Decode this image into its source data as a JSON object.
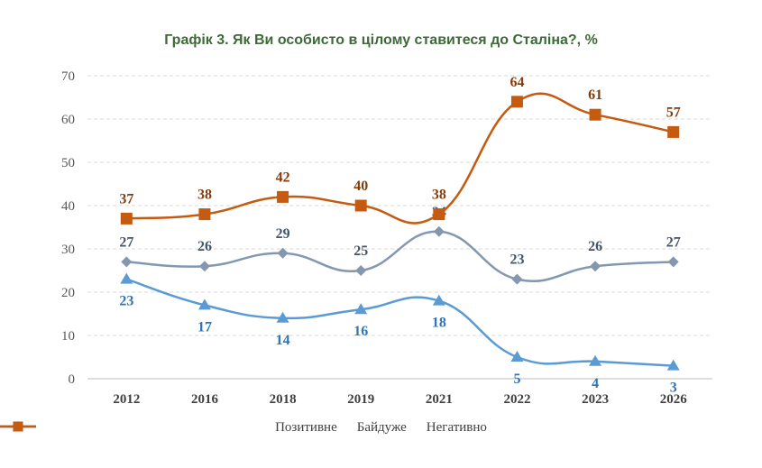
{
  "title": "Графік 3. Як Ви особисто в цілому ставитеся до Сталіна?, %",
  "chart_data": {
    "type": "line",
    "title": "Графік 3. Як Ви особисто в цілому ставитеся до Сталіна?, %",
    "categories": [
      "2012",
      "2016",
      "2018",
      "2019",
      "2021",
      "2022",
      "2023",
      "2026"
    ],
    "ylim": [
      0,
      70
    ],
    "yticks": [
      0,
      10,
      20,
      30,
      40,
      50,
      60,
      70
    ],
    "grid": true,
    "legend_position": "bottom",
    "series": [
      {
        "name": "Позитивне",
        "values": [
          23,
          17,
          14,
          16,
          18,
          5,
          4,
          3
        ],
        "color": "#5b9bd5",
        "marker": "triangle",
        "label_pos": "below"
      },
      {
        "name": "Байдуже",
        "values": [
          27,
          26,
          29,
          25,
          34,
          23,
          26,
          27
        ],
        "color": "#8497b0",
        "marker": "diamond",
        "label_pos": "above"
      },
      {
        "name": "Негативно",
        "values": [
          37,
          38,
          42,
          40,
          38,
          64,
          61,
          57
        ],
        "color": "#c55a11",
        "marker": "square",
        "label_pos": "above"
      }
    ],
    "label_colors": {
      "Позитивне": "#2e75b6",
      "Байдуже": "#44546a",
      "Негативно": "#843c0c"
    }
  }
}
